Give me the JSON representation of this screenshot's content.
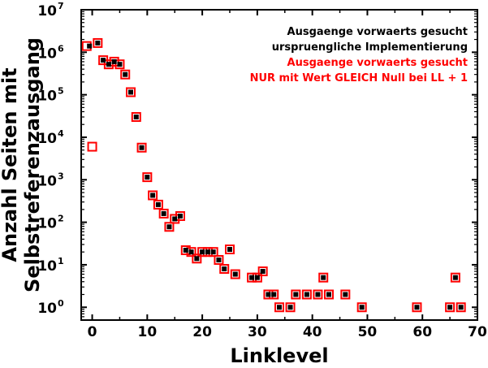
{
  "chart_data": {
    "type": "scatter",
    "xlabel": "Linklevel",
    "ylabel_lines": [
      "Anzahl Seiten mit",
      "Selbstreferenzausgang"
    ],
    "xlim": [
      -2,
      70
    ],
    "ylim": [
      0.5,
      10000000
    ],
    "yscale": "log",
    "xticks": [
      0,
      10,
      20,
      30,
      40,
      50,
      60,
      70
    ],
    "yticks": [
      {
        "value": 1,
        "base": "10",
        "exp": "0"
      },
      {
        "value": 10,
        "base": "10",
        "exp": "1"
      },
      {
        "value": 100,
        "base": "10",
        "exp": "2"
      },
      {
        "value": 1000,
        "base": "10",
        "exp": "3"
      },
      {
        "value": 10000,
        "base": "10",
        "exp": "4"
      },
      {
        "value": 100000,
        "base": "10",
        "exp": "5"
      },
      {
        "value": 1000000,
        "base": "10",
        "exp": "6"
      },
      {
        "value": 10000000,
        "base": "10",
        "exp": "7"
      }
    ],
    "grid": false,
    "legend_position": "top-right",
    "series": [
      {
        "name_lines": [
          "Ausgaenge vorwaerts gesucht",
          "urspruengliche Implementierung"
        ],
        "color": "#000000",
        "marker": "filled-square",
        "points": [
          [
            -0.5,
            1400000
          ],
          [
            1,
            1650000
          ],
          [
            2,
            650000
          ],
          [
            3,
            520000
          ],
          [
            4,
            600000
          ],
          [
            5,
            520000
          ],
          [
            6,
            300000
          ],
          [
            7,
            115000
          ],
          [
            8,
            30000
          ],
          [
            9,
            5700
          ],
          [
            10,
            1150
          ],
          [
            11,
            430
          ],
          [
            12,
            260
          ],
          [
            13,
            160
          ],
          [
            14,
            78
          ],
          [
            15,
            120
          ],
          [
            16,
            140
          ],
          [
            17,
            22
          ],
          [
            18,
            20
          ],
          [
            19,
            14
          ],
          [
            20,
            20
          ],
          [
            21,
            20
          ],
          [
            22,
            20
          ],
          [
            23,
            13
          ],
          [
            24,
            8
          ],
          [
            25,
            23
          ],
          [
            26,
            6
          ],
          [
            29,
            5
          ],
          [
            30,
            5
          ],
          [
            31,
            7
          ],
          [
            32,
            2
          ],
          [
            33,
            2
          ],
          [
            34,
            1
          ],
          [
            36,
            1
          ],
          [
            37,
            2
          ],
          [
            39,
            2
          ],
          [
            41,
            2
          ],
          [
            42,
            5
          ],
          [
            43,
            2
          ],
          [
            46,
            2
          ],
          [
            49,
            1
          ],
          [
            59,
            1
          ],
          [
            65,
            1
          ],
          [
            66,
            5
          ],
          [
            67,
            1
          ]
        ]
      },
      {
        "name_lines": [
          "Ausgaenge vorwaerts gesucht",
          "NUR mit Wert GLEICH Null bei LL + 1"
        ],
        "color": "#ff0000",
        "marker": "open-square",
        "points": [
          [
            -1,
            1400000
          ],
          [
            0,
            6000
          ],
          [
            1,
            1650000
          ],
          [
            2,
            650000
          ],
          [
            3,
            520000
          ],
          [
            4,
            600000
          ],
          [
            5,
            520000
          ],
          [
            6,
            300000
          ],
          [
            7,
            115000
          ],
          [
            8,
            30000
          ],
          [
            9,
            5700
          ],
          [
            10,
            1150
          ],
          [
            11,
            430
          ],
          [
            12,
            260
          ],
          [
            13,
            160
          ],
          [
            14,
            78
          ],
          [
            15,
            120
          ],
          [
            16,
            140
          ],
          [
            17,
            22
          ],
          [
            18,
            20
          ],
          [
            19,
            14
          ],
          [
            20,
            20
          ],
          [
            21,
            20
          ],
          [
            22,
            20
          ],
          [
            23,
            13
          ],
          [
            24,
            8
          ],
          [
            25,
            23
          ],
          [
            26,
            6
          ],
          [
            29,
            5
          ],
          [
            30,
            5
          ],
          [
            31,
            7
          ],
          [
            32,
            2
          ],
          [
            33,
            2
          ],
          [
            34,
            1
          ],
          [
            36,
            1
          ],
          [
            37,
            2
          ],
          [
            39,
            2
          ],
          [
            41,
            2
          ],
          [
            42,
            5
          ],
          [
            43,
            2
          ],
          [
            46,
            2
          ],
          [
            49,
            1
          ],
          [
            59,
            1
          ],
          [
            65,
            1
          ],
          [
            66,
            5
          ],
          [
            67,
            1
          ]
        ]
      }
    ]
  }
}
